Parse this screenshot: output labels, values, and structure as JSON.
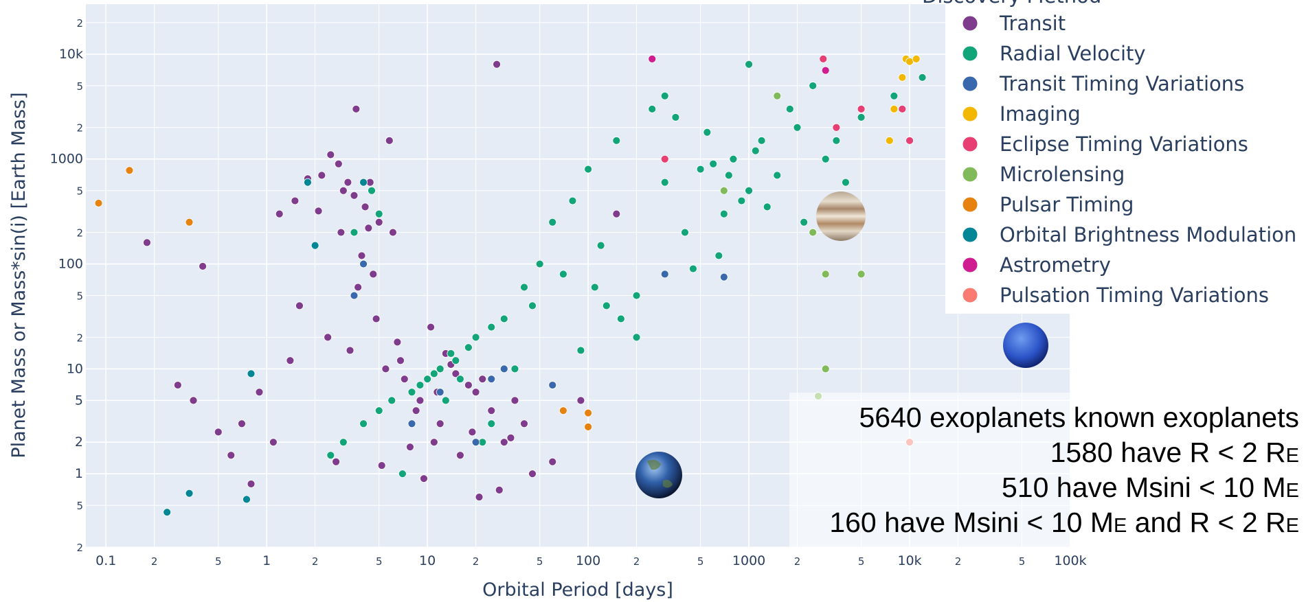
{
  "chart_data": {
    "type": "scatter",
    "x_label": "Orbital Period [days]",
    "y_label": "Planet Mass or Mass*sin(i) [Earth Mass]",
    "x_log": true,
    "y_log": true,
    "grid": true,
    "legend_title": "Discovery Method",
    "legend_position": "top-right",
    "xlim": [
      0.075,
      100000
    ],
    "ylim": [
      0.2,
      30000
    ],
    "xticks": [
      {
        "value": 0.1,
        "label": "0.1"
      },
      {
        "value": 0.2,
        "label": "2"
      },
      {
        "value": 0.5,
        "label": "5"
      },
      1,
      {
        "value": 2,
        "label": "2"
      },
      {
        "value": 5,
        "label": "5"
      },
      10,
      {
        "value": 20,
        "label": "2"
      },
      {
        "value": 50,
        "label": "5"
      },
      100,
      {
        "value": 200,
        "label": "2"
      },
      {
        "value": 500,
        "label": "5"
      },
      1000,
      {
        "value": 2000,
        "label": "2"
      },
      {
        "value": 5000,
        "label": "5"
      },
      {
        "value": 10000,
        "label": "10k"
      },
      {
        "value": 20000,
        "label": "2"
      },
      {
        "value": 50000,
        "label": "5"
      },
      {
        "value": 100000,
        "label": "100k"
      }
    ],
    "yticks": [
      {
        "value": 0.2,
        "label": "2"
      },
      {
        "value": 0.5,
        "label": "5"
      },
      1,
      2,
      5,
      10,
      {
        "value": 20,
        "label": "2"
      },
      {
        "value": 50,
        "label": "5"
      },
      100,
      {
        "value": 200,
        "label": "2"
      },
      {
        "value": 500,
        "label": "5"
      },
      1000,
      {
        "value": 2000,
        "label": "2"
      },
      {
        "value": 5000,
        "label": "5"
      },
      {
        "value": 10000,
        "label": "10k"
      },
      {
        "value": 20000,
        "label": "2"
      }
    ],
    "series": [
      {
        "name": "Transit",
        "color": "#7f3c8d",
        "x": [
          3.2,
          4.1,
          2.8,
          3.5,
          5.0,
          2.2,
          1.5,
          1.2,
          3.9,
          4.6,
          2.5,
          6.1,
          3.0,
          1.8,
          2.1,
          4.8,
          3.3,
          5.5,
          7.2,
          0.9,
          0.7,
          1.1,
          0.5,
          0.35,
          0.28,
          0.6,
          1.4,
          2.4,
          8.5,
          12,
          15,
          20,
          9,
          11,
          6.5,
          14,
          18,
          25,
          30,
          40,
          7.8,
          5.2,
          3.7,
          13,
          22,
          35,
          0.8,
          1.6,
          2.9,
          4.4,
          10.5,
          16,
          19,
          28,
          45,
          60,
          90,
          150,
          0.18,
          0.4,
          27,
          5.8,
          3.6,
          4.3,
          2.7,
          9.5,
          6.8,
          11.5,
          21,
          33
        ],
        "values": [
          600,
          350,
          900,
          450,
          250,
          700,
          400,
          300,
          120,
          80,
          1100,
          200,
          500,
          650,
          320,
          30,
          15,
          10,
          8,
          6,
          3,
          2,
          2.5,
          5,
          7,
          1.5,
          12,
          20,
          4,
          3,
          9,
          6,
          5,
          2,
          18,
          11,
          7,
          4,
          2,
          3,
          1.8,
          1.2,
          60,
          14,
          8,
          5,
          0.8,
          40,
          200,
          600,
          25,
          1.5,
          2.5,
          0.7,
          1,
          1.3,
          5,
          300,
          160,
          95,
          8000,
          1500,
          3000,
          220,
          1.3,
          0.9,
          12,
          6,
          0.6,
          2.2
        ]
      },
      {
        "name": "Radial Velocity",
        "color": "#11a579",
        "x": [
          300,
          500,
          800,
          1000,
          1200,
          1500,
          2000,
          700,
          400,
          600,
          900,
          1100,
          3000,
          4000,
          250,
          350,
          150,
          100,
          80,
          60,
          50,
          40,
          30,
          20,
          15,
          12,
          10,
          8,
          6,
          5,
          4,
          3,
          2.5,
          9,
          11,
          14,
          18,
          25,
          35,
          45,
          70,
          120,
          200,
          1800,
          2500,
          5000,
          8000,
          12000,
          650,
          450,
          550,
          750,
          1300,
          2200,
          3500,
          200,
          130,
          90,
          25,
          7,
          16,
          13,
          22,
          300,
          1000,
          5,
          3.5,
          4.5,
          110,
          160
        ],
        "values": [
          600,
          800,
          1000,
          500,
          1500,
          700,
          2000,
          300,
          200,
          900,
          400,
          1200,
          1000,
          600,
          3000,
          2500,
          1500,
          800,
          400,
          250,
          100,
          60,
          30,
          20,
          12,
          10,
          8,
          6,
          5,
          4,
          3,
          2,
          1.5,
          7,
          9,
          14,
          16,
          25,
          10,
          40,
          80,
          150,
          50,
          3000,
          5000,
          2500,
          4000,
          6000,
          120,
          90,
          1800,
          700,
          350,
          250,
          1500,
          20,
          40,
          15,
          3,
          1,
          8,
          5,
          2,
          4000,
          8000,
          300,
          200,
          500,
          60,
          30
        ]
      },
      {
        "name": "Transit Timing Variations",
        "color": "#3969ac",
        "x": [
          4,
          8,
          30,
          25,
          60,
          300,
          700,
          12,
          20,
          3.5
        ],
        "values": [
          100,
          3,
          10,
          8,
          7,
          80,
          75,
          6,
          2,
          50
        ]
      },
      {
        "name": "Imaging",
        "color": "#f2b701",
        "x": [
          9500,
          10000,
          11000,
          8000,
          7500,
          9000
        ],
        "values": [
          9000,
          8500,
          9000,
          3000,
          1500,
          6000
        ]
      },
      {
        "name": "Eclipse Timing Variations",
        "color": "#e73f74",
        "x": [
          2900,
          300,
          5000,
          3500,
          10000,
          9000
        ],
        "values": [
          9000,
          1000,
          3000,
          2000,
          1500,
          3000
        ]
      },
      {
        "name": "Microlensing",
        "color": "#80ba5a",
        "x": [
          2500,
          3000,
          5000,
          3000,
          2700,
          1500,
          700
        ],
        "values": [
          200,
          80,
          80,
          10,
          5.5,
          4000,
          500
        ]
      },
      {
        "name": "Pulsar Timing",
        "color": "#e68310",
        "x": [
          0.09,
          0.14,
          0.33,
          70,
          100,
          100
        ],
        "values": [
          380,
          780,
          250,
          4,
          3.8,
          2.8
        ]
      },
      {
        "name": "Orbital Brightness Modulation",
        "color": "#008695",
        "x": [
          0.24,
          0.33,
          1.8,
          2.0,
          0.75,
          4,
          0.8
        ],
        "values": [
          0.43,
          0.65,
          600,
          150,
          0.57,
          600,
          9
        ]
      },
      {
        "name": "Astrometry",
        "color": "#cf1c90",
        "x": [
          250,
          3000
        ],
        "values": [
          9000,
          7000
        ]
      },
      {
        "name": "Pulsation Timing Variations",
        "color": "#f97b72",
        "x": [
          10000
        ],
        "values": [
          2
        ]
      }
    ],
    "annotation": [
      [
        "5640 exoplanets known exoplanets"
      ],
      [
        "1580 have R < 2 R",
        "E"
      ],
      [
        "510 have Msini < 10 M",
        "E"
      ],
      [
        "160 have Msini < 10 M",
        "E",
        " and R < 2 R",
        "E"
      ]
    ]
  }
}
